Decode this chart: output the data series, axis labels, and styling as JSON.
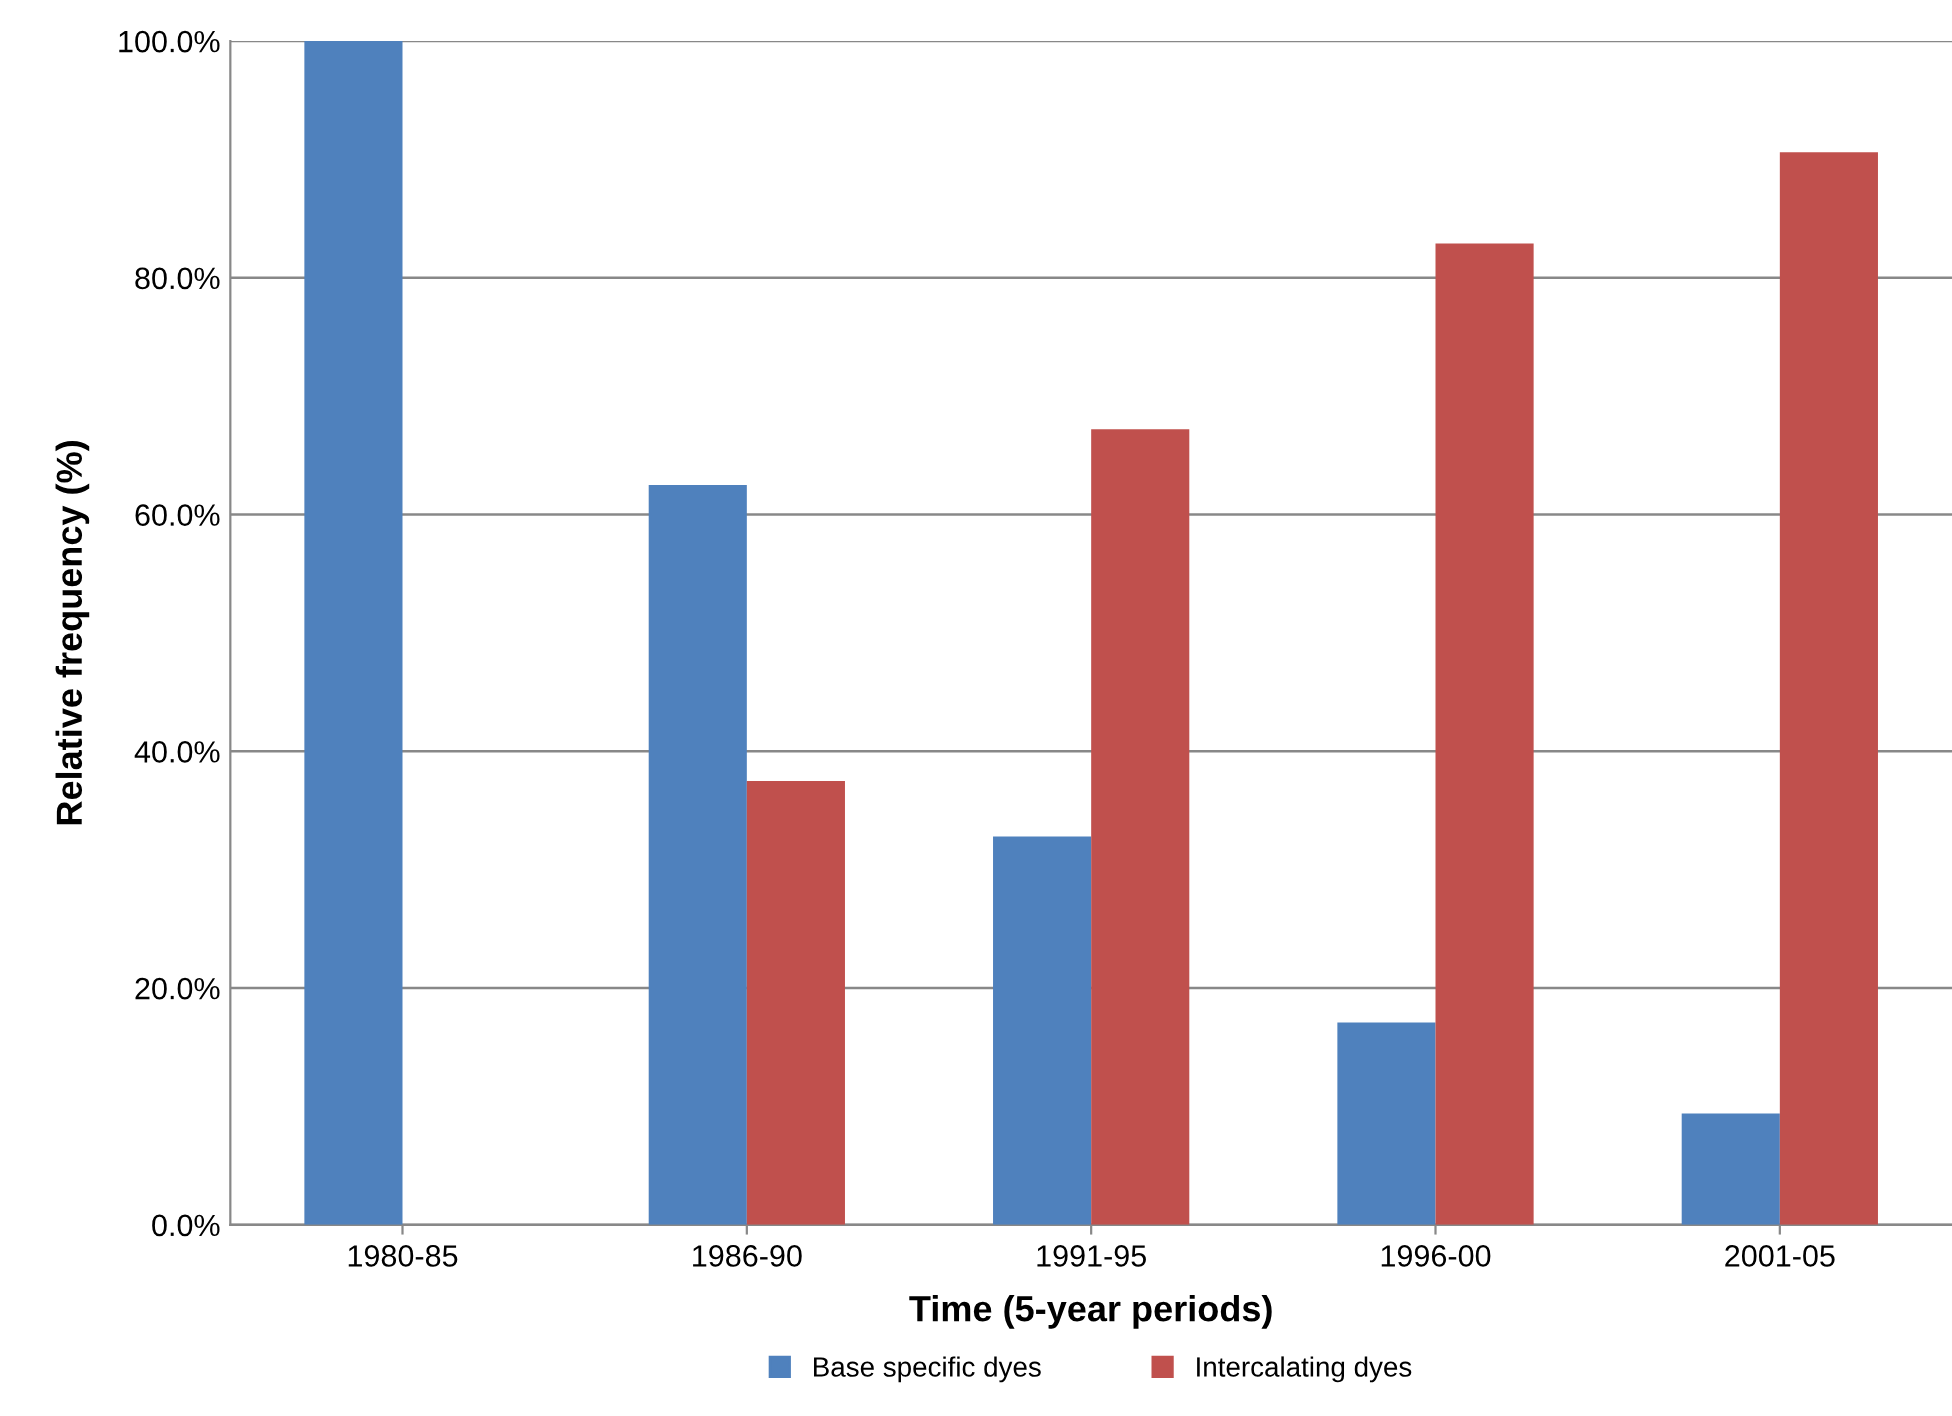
{
  "chart_data": {
    "type": "bar",
    "xlabel": "Time (5-year periods)",
    "ylabel": "Relative frequency (%)",
    "categories": [
      "1980-85",
      "1986-90",
      "1991-95",
      "1996-00",
      "2001-05"
    ],
    "series": [
      {
        "name": "Base specific dyes",
        "color": "#4f81bd",
        "values": [
          100,
          62.5,
          32.8,
          17.1,
          9.4
        ]
      },
      {
        "name": "Intercalating dyes",
        "color": "#c0504d",
        "values": [
          0,
          37.5,
          67.2,
          82.9,
          90.6
        ]
      }
    ],
    "ylim": [
      0,
      100
    ],
    "yticks": [
      {
        "value": 0,
        "label": "0.0%"
      },
      {
        "value": 20,
        "label": "20.0%"
      },
      {
        "value": 40,
        "label": "40.0%"
      },
      {
        "value": 60,
        "label": "60.0%"
      },
      {
        "value": 80,
        "label": "80.0%"
      },
      {
        "value": 100,
        "label": "100.0%"
      }
    ],
    "grid": "y",
    "legend": "bottom"
  }
}
